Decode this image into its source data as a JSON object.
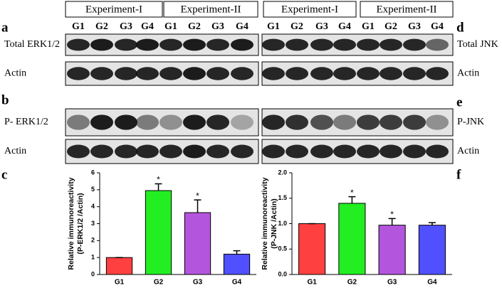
{
  "headers": {
    "left": [
      "Experiment-I",
      "Experiment-II"
    ],
    "right": [
      "Experiment-I",
      "Experiment-II"
    ]
  },
  "lanes": {
    "left": [
      "G1",
      "G2",
      "G3",
      "G4",
      "G1",
      "G2",
      "G3",
      "G4"
    ],
    "right": [
      "G1",
      "G2",
      "G3",
      "G4",
      "G1",
      "G2",
      "G3",
      "G4"
    ]
  },
  "panel_letters": [
    "a",
    "b",
    "c",
    "d",
    "e",
    "f"
  ],
  "blot_labels": {
    "left": [
      "Total ERK1/2",
      "Actin",
      "P- ERK1/2",
      "Actin"
    ],
    "right": [
      "Total JNK",
      "Actin",
      "P-JNK",
      "Actin"
    ]
  },
  "chart_data": [
    {
      "type": "bar",
      "y_label": [
        "Relative immunoreactivity",
        "(P-ERK1/2 /Actin)"
      ],
      "categories": [
        "G1",
        "G2",
        "G3",
        "G4"
      ],
      "values": [
        1,
        4.95,
        3.65,
        1.2
      ],
      "errors": [
        0,
        0.4,
        0.75,
        0.2
      ],
      "colors": [
        "#ff4040",
        "#22ee22",
        "#b455dd",
        "#5050ff"
      ],
      "ylim": [
        0,
        6
      ],
      "yticks": [
        0,
        1,
        2,
        3,
        4,
        5,
        6
      ],
      "annotations": [
        {
          "text": "*",
          "category": 1
        },
        {
          "text": "*",
          "category": 2
        }
      ]
    },
    {
      "type": "bar",
      "y_label": [
        "Relative immunoreactivity",
        "(P-JNK /Actin)"
      ],
      "categories": [
        "G1",
        "G2",
        "G3",
        "G4"
      ],
      "values": [
        1.0,
        1.4,
        0.97,
        0.97
      ],
      "errors": [
        0,
        0.13,
        0.13,
        0.05
      ],
      "colors": [
        "#ff4040",
        "#22ee22",
        "#b455dd",
        "#5050ff"
      ],
      "ylim": [
        0,
        2.0
      ],
      "yticks": [
        {
          "value": 0,
          "label": "0.0"
        },
        0.5,
        {
          "value": 1,
          "label": "1.0"
        },
        1.5,
        {
          "value": 2,
          "label": "2.0"
        }
      ],
      "annotations": [
        {
          "text": "*",
          "category": 1
        },
        {
          "text": "*",
          "category": 2
        }
      ]
    }
  ]
}
